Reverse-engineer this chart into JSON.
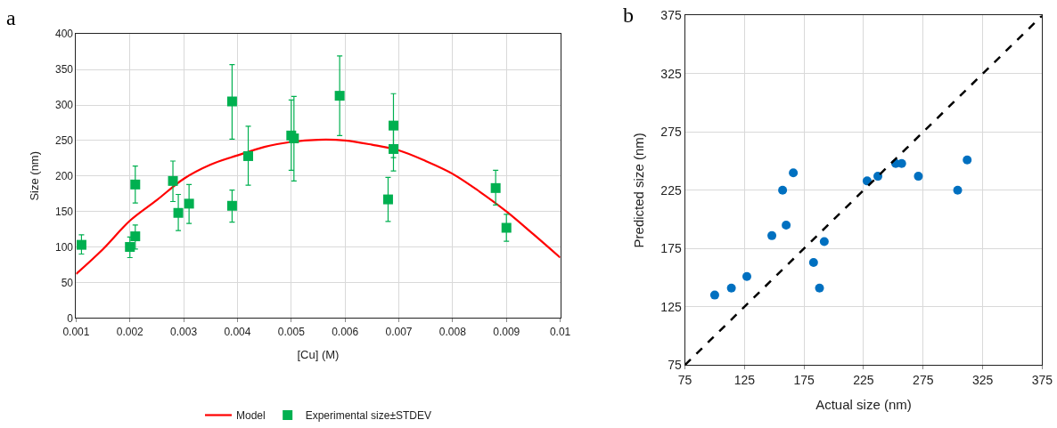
{
  "chart_data": [
    {
      "type": "scatter",
      "annotations": [
        "a"
      ],
      "xlabel": "[Cu] (M)",
      "ylabel": "Size (nm)",
      "xlim": [
        0.001,
        0.01
      ],
      "xticks": [
        0.001,
        0.002,
        0.003,
        0.004,
        0.005,
        0.006,
        0.007,
        0.008,
        0.009,
        0.01
      ],
      "ylim": [
        0,
        400
      ],
      "yticks": [
        0,
        50,
        100,
        150,
        200,
        250,
        300,
        350,
        400
      ],
      "grid": true,
      "legend": "bottom",
      "series": [
        {
          "name": "Model",
          "type": "line",
          "color": "#ff0000",
          "marker": "none",
          "line_style": "solid",
          "x": [
            0.001,
            0.0015,
            0.002,
            0.0025,
            0.003,
            0.0035,
            0.004,
            0.0045,
            0.005,
            0.0055,
            0.006,
            0.0065,
            0.007,
            0.0075,
            0.008,
            0.0085,
            0.009,
            0.0095,
            0.01
          ],
          "values": [
            62,
            97,
            137,
            166,
            196,
            216,
            229,
            241,
            248,
            251,
            250,
            244,
            236,
            221,
            203,
            178,
            150,
            118,
            85
          ]
        },
        {
          "name": "Experimental size±STDEV",
          "color": "#00b050",
          "marker": "square",
          "x": [
            0.0011,
            0.002,
            0.0021,
            0.0021,
            0.0028,
            0.0029,
            0.0031,
            0.0039,
            0.0039,
            0.0042,
            0.005,
            0.00505,
            0.0059,
            0.0068,
            0.0069,
            0.0069,
            0.0088,
            0.009
          ],
          "values": [
            103,
            100,
            115,
            188,
            193,
            148,
            161,
            305,
            158,
            228,
            257,
            253,
            313,
            167,
            271,
            238,
            183,
            127
          ],
          "errors": [
            [
              90,
              117
            ],
            [
              85,
              114
            ],
            [
              97,
              131
            ],
            [
              162,
              214
            ],
            [
              164,
              221
            ],
            [
              123,
              174
            ],
            [
              133,
              188
            ],
            [
              252,
              357
            ],
            [
              135,
              180
            ],
            [
              187,
              270
            ],
            [
              208,
              307
            ],
            [
              193,
              312
            ],
            [
              257,
              369
            ],
            [
              136,
              198
            ],
            [
              226,
              316
            ],
            [
              207,
              268
            ],
            [
              159,
              208
            ],
            [
              108,
              146
            ]
          ]
        }
      ]
    },
    {
      "type": "scatter",
      "annotations": [
        "b"
      ],
      "xlabel": "Actual size (nm)",
      "ylabel": "Predicted size (nm)",
      "xlim": [
        75,
        375
      ],
      "xticks": [
        75,
        125,
        175,
        225,
        275,
        325,
        375
      ],
      "ylim": [
        75,
        375
      ],
      "yticks": [
        75,
        125,
        175,
        225,
        275,
        325,
        375
      ],
      "grid": true,
      "series": [
        {
          "color": "#0070c0",
          "marker": "circle",
          "x": [
            100,
            114,
            127,
            148,
            157,
            160,
            166,
            183,
            188,
            192,
            228,
            237,
            252,
            257,
            271,
            304,
            312
          ],
          "values": [
            135,
            141,
            151,
            186,
            225,
            195,
            240,
            163,
            141,
            181,
            233,
            237,
            248,
            248,
            237,
            225,
            251
          ]
        },
        {
          "type": "line",
          "color": "#000000",
          "marker": "none",
          "line_style": "dashed",
          "x": [
            75,
            375
          ],
          "values": [
            75,
            375
          ]
        }
      ]
    }
  ]
}
